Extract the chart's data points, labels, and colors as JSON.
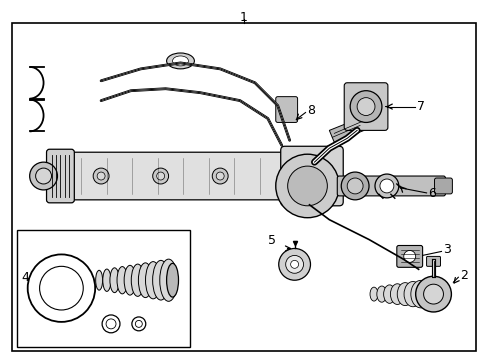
{
  "background_color": "#ffffff",
  "border_color": "#000000",
  "line_color": "#000000",
  "text_color": "#000000",
  "figsize": [
    4.89,
    3.6
  ],
  "dpi": 100
}
